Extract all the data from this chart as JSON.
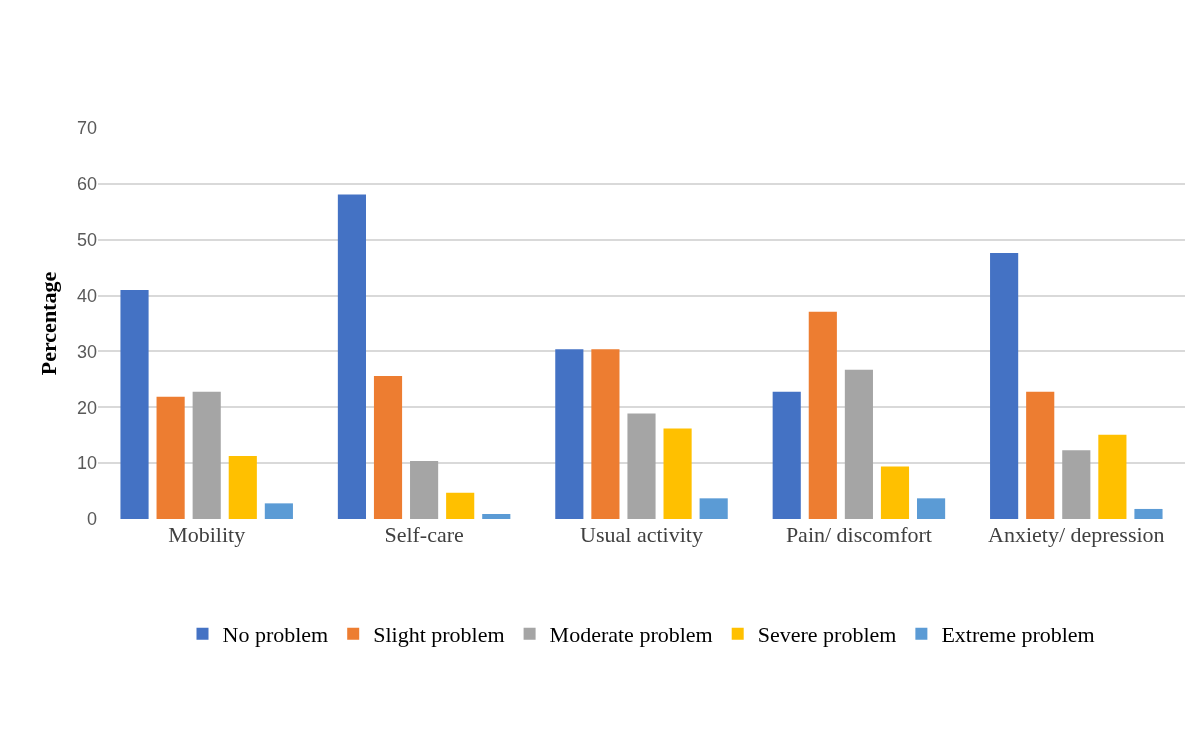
{
  "chart_data": {
    "type": "bar",
    "ylabel": "Percentage",
    "categories": [
      "Mobility",
      "Self-care",
      "Usual activity",
      "Pain/ discomfort",
      "Anxiety/ depression"
    ],
    "series": [
      {
        "name": "No problem",
        "color": "#4472c4",
        "values": [
          41.0,
          58.1,
          30.4,
          22.8,
          47.6
        ]
      },
      {
        "name": "Slight problem",
        "color": "#ed7d31",
        "values": [
          21.9,
          25.6,
          30.4,
          37.1,
          22.8
        ]
      },
      {
        "name": "Moderate problem",
        "color": "#a5a5a5",
        "values": [
          22.8,
          10.4,
          18.9,
          26.7,
          12.3
        ]
      },
      {
        "name": "Severe problem",
        "color": "#ffc000",
        "values": [
          11.3,
          4.7,
          16.2,
          9.4,
          15.1
        ]
      },
      {
        "name": "Extreme problem",
        "color": "#5b9bd5",
        "values": [
          2.8,
          0.9,
          3.7,
          3.7,
          1.8
        ]
      }
    ],
    "ylim": [
      0,
      70
    ],
    "yticks": [
      0,
      10,
      20,
      30,
      40,
      50,
      60,
      70
    ],
    "grid": "y",
    "legend": "bottom"
  }
}
